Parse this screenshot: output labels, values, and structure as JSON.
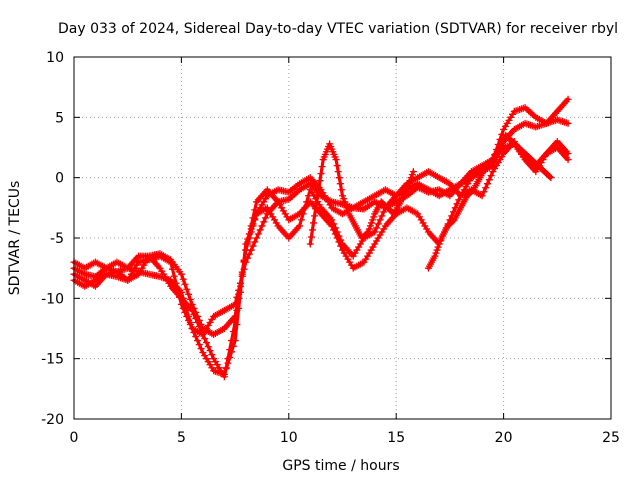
{
  "chart_data": {
    "type": "scatter",
    "title": "Day 033 of 2024, Sidereal Day-to-day VTEC variation (SDTVAR) for receiver rbyl",
    "xlabel": "GPS time / hours",
    "ylabel": "SDTVAR / TECUs",
    "xlim": [
      0,
      25
    ],
    "ylim": [
      -20,
      10
    ],
    "xticks": [
      0,
      5,
      10,
      15,
      20,
      25
    ],
    "yticks": [
      -20,
      -15,
      -10,
      -5,
      0,
      5,
      10
    ],
    "grid": true,
    "marker": "+",
    "color": "#ff0000",
    "series": [
      {
        "x": [
          0,
          0.5,
          1,
          1.5,
          2,
          2.5,
          3,
          3.5,
          4,
          4.5,
          5,
          5.5,
          6,
          6.5,
          7,
          7.5,
          8,
          8.5,
          9,
          9.5,
          10,
          10.5,
          11,
          11.5,
          12,
          12.5,
          13,
          13.5,
          14,
          14.5,
          15,
          15.5,
          16,
          16.5,
          17,
          17.5,
          18,
          18.5,
          19,
          19.5,
          20,
          20.5,
          21,
          21.5,
          22,
          22.5,
          23
        ],
        "y": [
          -7.5,
          -8,
          -8.2,
          -7.5,
          -7.8,
          -8.5,
          -8,
          -6.5,
          -6.3,
          -6.8,
          -8,
          -10.5,
          -12.5,
          -13,
          -12.5,
          -11.5,
          -6,
          -3,
          -1.5,
          -1,
          -1.2,
          -0.5,
          0,
          -1,
          -2.5,
          -3,
          -2.5,
          -2,
          -1.5,
          -1,
          -1.5,
          -1,
          -0.5,
          -1,
          -1.5,
          -1,
          -0.5,
          0,
          0.5,
          1,
          3,
          4,
          4.5,
          4.2,
          4.5,
          4.8,
          4.5
        ]
      },
      {
        "x": [
          0,
          0.5,
          1,
          1.5,
          2,
          2.5,
          3,
          3.5,
          4,
          4.5,
          5,
          5.5,
          6,
          6.5,
          7,
          7.5,
          8,
          8.5,
          9,
          9.5,
          10,
          10.5,
          11,
          11.5,
          12,
          12.5,
          13,
          13.5,
          14,
          14.5,
          15,
          15.5,
          16,
          16.5,
          17,
          17.5,
          18,
          18.5,
          19,
          19.5,
          20,
          20.5,
          21,
          21.5,
          22,
          22.5,
          23
        ],
        "y": [
          -8.5,
          -9,
          -8.5,
          -8,
          -7.8,
          -7.5,
          -7.8,
          -8,
          -8.2,
          -8.5,
          -9.5,
          -12.5,
          -13,
          -11.5,
          -11,
          -10.5,
          -7,
          -5,
          -3,
          -2,
          -1.8,
          -1,
          -0.5,
          -1.5,
          -2,
          -2.2,
          -2.5,
          -2.6,
          -2,
          -2.5,
          -2,
          -1.5,
          -0.8,
          -1.2,
          -1,
          -1.5,
          -0.5,
          0.5,
          1,
          1.5,
          4,
          5.5,
          5.8,
          5,
          4.5,
          5.5,
          6.5
        ]
      },
      {
        "x": [
          0,
          0.5,
          1,
          1.5,
          2,
          2.5,
          3,
          3.5,
          4,
          4.5,
          5,
          5.5,
          6,
          6.5,
          7,
          7.5,
          8,
          8.5,
          9,
          9.5,
          10,
          10.5,
          11,
          11.5,
          12,
          12.5,
          13,
          13.5,
          14,
          14.5,
          15,
          15.5,
          16,
          16.5,
          17,
          17.5,
          18,
          18.5,
          19,
          19.5,
          20,
          20.5,
          21,
          21.5,
          22,
          22.5,
          23
        ],
        "y": [
          -7,
          -7.5,
          -7,
          -7.5,
          -7,
          -7.5,
          -6.5,
          -6.5,
          -7.5,
          -9,
          -10,
          -11,
          -13,
          -15,
          -16.5,
          -12,
          -6,
          -2,
          -1,
          -2,
          -3.5,
          -3,
          -2,
          -3,
          -4,
          -6,
          -7.5,
          -7,
          -5.5,
          -4,
          -3,
          -2.5,
          -3,
          -4.5,
          -5.5,
          -3.5,
          -1.5,
          -1,
          -1.5,
          0.5,
          2,
          3,
          1.5,
          0.5,
          2,
          3,
          2
        ]
      },
      {
        "x": [
          0,
          0.5,
          1,
          1.5,
          2,
          2.5,
          3,
          3.5,
          4,
          4.5,
          5,
          5.5,
          6,
          6.5,
          7,
          7.5,
          8,
          8.5,
          9,
          9.5,
          10,
          10.5,
          11,
          11.5,
          12,
          12.5,
          13,
          13.5,
          14,
          14.5,
          15,
          15.5,
          16,
          16.5,
          17,
          17.5,
          18,
          18.5,
          19,
          19.5,
          20,
          20.5,
          21,
          21.5,
          22,
          22.5,
          23
        ],
        "y": [
          -8,
          -8.5,
          -9,
          -8,
          -8.2,
          -8.5,
          -7,
          -6.8,
          -6.5,
          -7,
          -10.5,
          -12.5,
          -14.5,
          -16,
          -16.3,
          -13.5,
          -5.5,
          -3,
          -2.5,
          -4,
          -5,
          -4,
          -1,
          -2.5,
          -3.5,
          -5.5,
          -6.5,
          -5,
          -4.5,
          -2.5,
          -1.5,
          -0.5,
          0,
          0.5,
          0,
          -0.5,
          -1.5,
          0,
          0.8,
          1.5,
          2.5,
          2.8,
          1.5,
          1,
          2,
          2.5,
          1.5
        ]
      },
      {
        "x": [
          11,
          11.3,
          11.6,
          11.9,
          12.2,
          12.5,
          12.8,
          13.1,
          13.4,
          13.7,
          14,
          14.3,
          14.6,
          14.9,
          15.2,
          15.5,
          15.8
        ],
        "y": [
          -5.5,
          -2,
          1.5,
          2.8,
          1.5,
          -1.5,
          -3,
          -4,
          -5,
          -4.5,
          -3,
          -2,
          -2.5,
          -3,
          -2,
          -1,
          0.5
        ]
      },
      {
        "x": [
          16.5,
          16.8,
          17.1,
          17.4,
          17.7,
          18,
          18.3,
          18.6,
          18.9,
          19.2,
          19.5,
          19.8,
          20.1,
          20.4,
          20.7,
          21,
          21.3,
          21.6,
          21.9,
          22.2
        ],
        "y": [
          -7.5,
          -6.5,
          -5,
          -4,
          -3.5,
          -2.5,
          -1.5,
          -1,
          0,
          1,
          1.5,
          2.5,
          3.5,
          3,
          2.5,
          2,
          1.5,
          1,
          0.5,
          0
        ]
      }
    ]
  }
}
